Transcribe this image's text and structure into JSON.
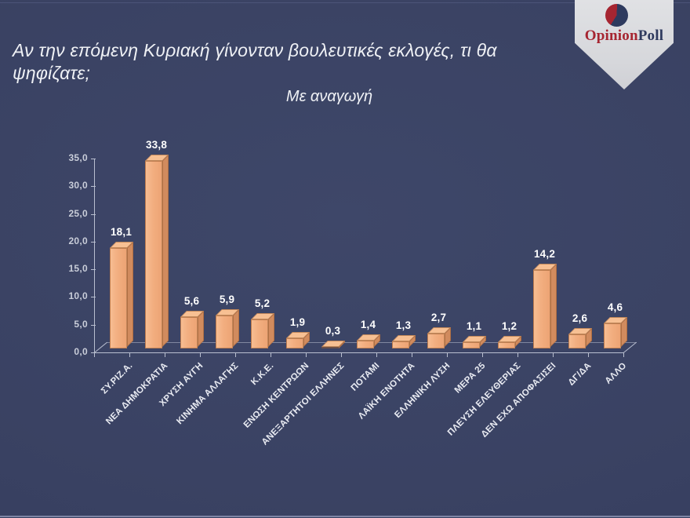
{
  "header": {
    "title": "Αν την επόμενη Κυριακή γίνονταν βουλευτικές εκλογές, τι θα ψηφίζατε;",
    "subtitle": "Με αναγωγή"
  },
  "logo": {
    "brand_first": "Opinion",
    "brand_second": "Poll",
    "icon": "pie-chart-icon",
    "banner_color": "#d7d8dc",
    "brand_red": "#a62531",
    "brand_navy": "#2e3a5e"
  },
  "chart_data": {
    "type": "bar",
    "style": "3d-column",
    "title": "Αν την επόμενη Κυριακή γίνονταν βουλευτικές εκλογές, τι θα ψηφίζατε; — Με αναγωγή",
    "categories": [
      "ΣΥ.ΡΙΖ.Α.",
      "ΝΕΑ ΔΗΜΟΚΡΑΤΙΑ",
      "ΧΡΥΣΗ ΑΥΓΗ",
      "ΚΙΝΗΜΑ ΑΛΛΑΓΗΣ",
      "Κ.Κ.Ε.",
      "ΕΝΩΣΗ ΚΕΝΤΡΩΩΝ",
      "ΑΝΕΞΑΡΤΗΤΟΙ ΕΛΛΗΝΕΣ",
      "ΠΟΤΑΜΙ",
      "ΛΑΪΚΗ ΕΝΟΤΗΤΑ",
      "ΕΛΛΗΝΙΚΗ ΛΥΣΗ",
      "ΜΕΡΑ 25",
      "ΠΛΕΥΣΗ ΕΛΕΥΘΕΡΙΑΣ",
      "ΔΕΝ ΕΧΩ ΑΠΟΦΑΣΙΣΕΙ",
      "ΔΓ/ΔΑ",
      "ΑΛΛΟ"
    ],
    "values": [
      18.1,
      33.8,
      5.6,
      5.9,
      5.2,
      1.9,
      0.3,
      1.4,
      1.3,
      2.7,
      1.1,
      1.2,
      14.2,
      2.6,
      4.6
    ],
    "value_labels": [
      "18,1",
      "33,8",
      "5,6",
      "5,9",
      "5,2",
      "1,9",
      "0,3",
      "1,4",
      "1,3",
      "2,7",
      "1,1",
      "1,2",
      "14,2",
      "2,6",
      "4,6"
    ],
    "xlabel": "",
    "ylabel": "",
    "ylim": [
      0,
      35
    ],
    "y_step": 5,
    "y_tick_labels": [
      "0,0",
      "5,0",
      "10,0",
      "15,0",
      "20,0",
      "25,0",
      "30,0",
      "35,0"
    ],
    "grid": false,
    "legend": "none",
    "colors": {
      "bar_front": "#f2ae80",
      "bar_side": "#d18b5e",
      "bar_top": "#f7c093",
      "axis": "#b9bfd0",
      "value_label": "#ffffff",
      "category_label": "#e9ebf2",
      "tick_label": "#c9cdd9",
      "background": "#3a4263"
    }
  }
}
